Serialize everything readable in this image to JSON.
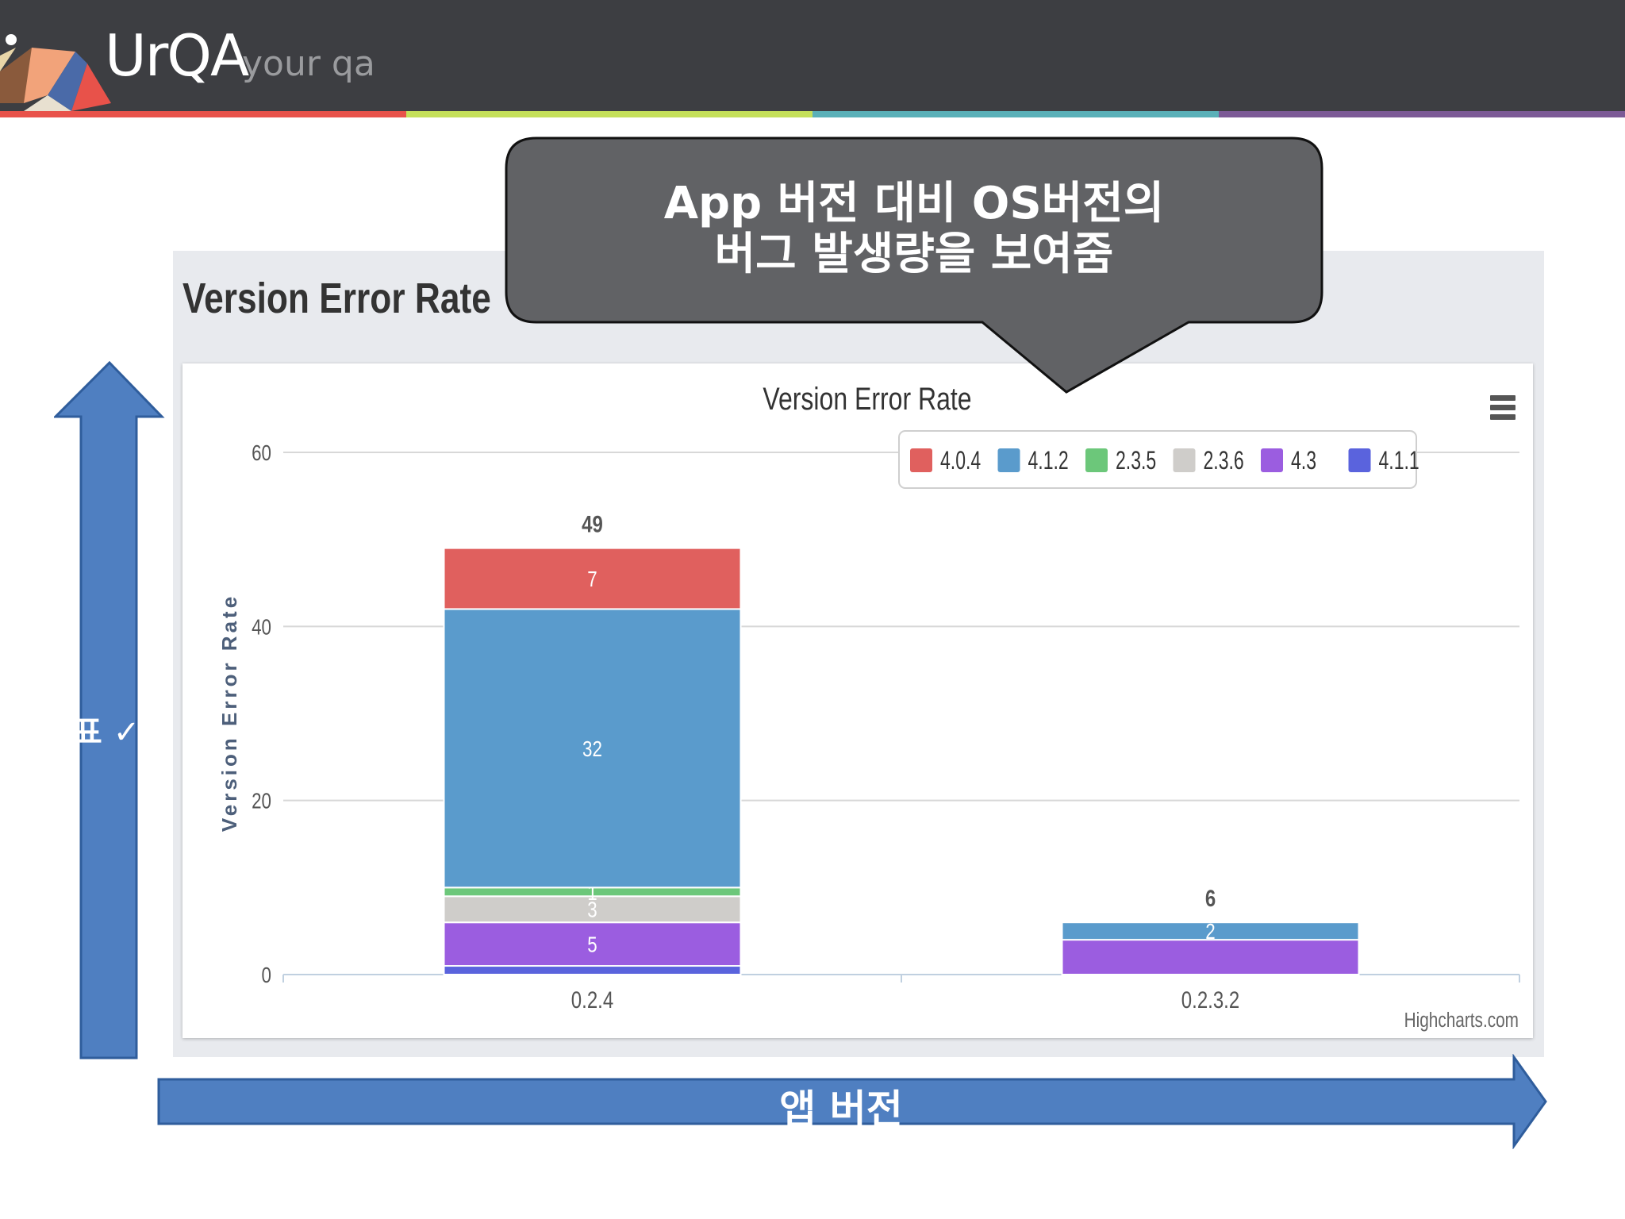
{
  "header": {
    "logo_text": "UrQA",
    "logo_sub": "your qa",
    "strip_colors": [
      "#e8524a",
      "#c5e05a",
      "#5ab0b8",
      "#7c5a96"
    ]
  },
  "panel": {
    "title": "Version Error Rate"
  },
  "callout": {
    "line1": "App 버전 대비 OS버전의",
    "line2": "버그 발생량을 보여줌",
    "color": "#616265"
  },
  "arrows": {
    "y_label": "표 ✓ ᄃ",
    "x_label": "앱 버전",
    "color": "#4f7fc1"
  },
  "chart_data": {
    "type": "bar",
    "stacked": true,
    "title": "Version Error Rate",
    "ylabel": "Version Error Rate",
    "xlabel": "",
    "ylim": [
      0,
      60
    ],
    "yticks": [
      "0",
      "20",
      "40",
      "60"
    ],
    "grid": true,
    "legend_position": "top-right",
    "credits": "Highcharts.com",
    "categories": [
      "0.2.4",
      "0.2.3.2"
    ],
    "totals": [
      "49",
      "6"
    ],
    "series": [
      {
        "name": "4.0.4",
        "color": "#e0605e",
        "values": [
          7,
          0
        ],
        "labels": [
          "7",
          ""
        ]
      },
      {
        "name": "4.1.2",
        "color": "#5a9bcc",
        "values": [
          32,
          2
        ],
        "labels": [
          "32",
          "2"
        ]
      },
      {
        "name": "2.3.5",
        "color": "#6cc77a",
        "values": [
          1,
          0
        ],
        "labels": [
          "1",
          ""
        ]
      },
      {
        "name": "2.3.6",
        "color": "#cfcdca",
        "values": [
          3,
          0
        ],
        "labels": [
          "3",
          ""
        ]
      },
      {
        "name": "4.3",
        "color": "#9b5de0",
        "values": [
          5,
          4
        ],
        "labels": [
          "5",
          ""
        ]
      },
      {
        "name": "4.1.1",
        "color": "#5a63dd",
        "values": [
          1,
          0
        ],
        "labels": [
          "",
          ""
        ]
      }
    ]
  }
}
